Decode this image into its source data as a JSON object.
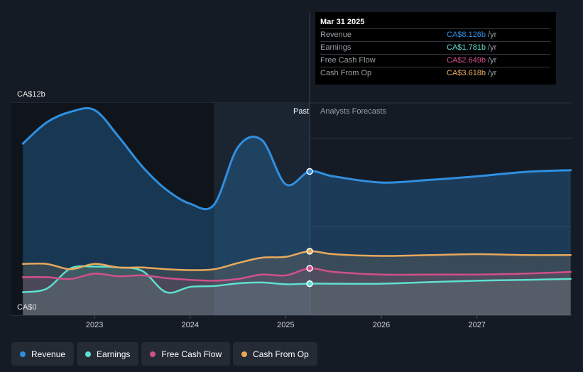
{
  "chart_data": {
    "type": "area",
    "y_axis": {
      "top_label": "CA$12b",
      "bottom_label": "CA$0",
      "ylim": [
        0,
        12
      ]
    },
    "x_ticks": [
      "2023",
      "2024",
      "2025",
      "2026",
      "2027"
    ],
    "regions": {
      "past_label": "Past",
      "forecast_label": "Analysts Forecasts"
    },
    "divider_x": 2025.25,
    "series": [
      {
        "name": "Revenue",
        "color": "#2f8fe0",
        "points": [
          [
            2022.25,
            9.7
          ],
          [
            2022.5,
            10.9
          ],
          [
            2022.75,
            11.5
          ],
          [
            2023.0,
            11.6
          ],
          [
            2023.25,
            10.1
          ],
          [
            2023.5,
            8.4
          ],
          [
            2023.75,
            7.1
          ],
          [
            2024.0,
            6.3
          ],
          [
            2024.25,
            6.25
          ],
          [
            2024.5,
            9.5
          ],
          [
            2024.75,
            9.9
          ],
          [
            2025.0,
            7.4
          ],
          [
            2025.25,
            8.126
          ],
          [
            2025.5,
            7.85
          ],
          [
            2026.0,
            7.5
          ],
          [
            2026.5,
            7.65
          ],
          [
            2027.0,
            7.85
          ],
          [
            2027.5,
            8.1
          ],
          [
            2027.98,
            8.2
          ]
        ]
      },
      {
        "name": "Earnings",
        "color": "#5ee0cf",
        "points": [
          [
            2022.25,
            1.3
          ],
          [
            2022.5,
            1.5
          ],
          [
            2022.75,
            2.65
          ],
          [
            2023.0,
            2.75
          ],
          [
            2023.25,
            2.7
          ],
          [
            2023.5,
            2.5
          ],
          [
            2023.75,
            1.3
          ],
          [
            2024.0,
            1.6
          ],
          [
            2024.25,
            1.65
          ],
          [
            2024.5,
            1.8
          ],
          [
            2024.75,
            1.85
          ],
          [
            2025.0,
            1.75
          ],
          [
            2025.25,
            1.781
          ],
          [
            2025.5,
            1.78
          ],
          [
            2026.0,
            1.78
          ],
          [
            2026.5,
            1.87
          ],
          [
            2027.0,
            1.95
          ],
          [
            2027.5,
            2.0
          ],
          [
            2027.98,
            2.05
          ]
        ]
      },
      {
        "name": "Free Cash Flow",
        "color": "#d1508a",
        "points": [
          [
            2022.25,
            2.15
          ],
          [
            2022.5,
            2.15
          ],
          [
            2022.75,
            2.05
          ],
          [
            2023.0,
            2.35
          ],
          [
            2023.25,
            2.2
          ],
          [
            2023.5,
            2.25
          ],
          [
            2023.75,
            2.1
          ],
          [
            2024.0,
            2.0
          ],
          [
            2024.25,
            1.95
          ],
          [
            2024.5,
            2.05
          ],
          [
            2024.75,
            2.3
          ],
          [
            2025.0,
            2.25
          ],
          [
            2025.25,
            2.649
          ],
          [
            2025.5,
            2.45
          ],
          [
            2026.0,
            2.3
          ],
          [
            2026.5,
            2.3
          ],
          [
            2027.0,
            2.3
          ],
          [
            2027.5,
            2.35
          ],
          [
            2027.98,
            2.45
          ]
        ]
      },
      {
        "name": "Cash From Op",
        "color": "#e8a95c",
        "points": [
          [
            2022.25,
            2.9
          ],
          [
            2022.5,
            2.9
          ],
          [
            2022.75,
            2.6
          ],
          [
            2023.0,
            2.9
          ],
          [
            2023.25,
            2.7
          ],
          [
            2023.5,
            2.7
          ],
          [
            2023.75,
            2.6
          ],
          [
            2024.0,
            2.55
          ],
          [
            2024.25,
            2.6
          ],
          [
            2024.5,
            2.95
          ],
          [
            2024.75,
            3.25
          ],
          [
            2025.0,
            3.3
          ],
          [
            2025.25,
            3.618
          ],
          [
            2025.5,
            3.45
          ],
          [
            2026.0,
            3.35
          ],
          [
            2026.5,
            3.4
          ],
          [
            2027.0,
            3.45
          ],
          [
            2027.5,
            3.4
          ],
          [
            2027.98,
            3.4
          ]
        ]
      }
    ],
    "tooltip": {
      "date": "Mar 31 2025",
      "rows": [
        {
          "name": "Revenue",
          "value": "CA$8.126b",
          "unit": "/yr",
          "color": "#2f8fe0"
        },
        {
          "name": "Earnings",
          "value": "CA$1.781b",
          "unit": "/yr",
          "color": "#5ee0cf"
        },
        {
          "name": "Free Cash Flow",
          "value": "CA$2.649b",
          "unit": "/yr",
          "color": "#d1508a"
        },
        {
          "name": "Cash From Op",
          "value": "CA$3.618b",
          "unit": "/yr",
          "color": "#e8a95c"
        }
      ]
    },
    "grid": true,
    "legend_position": "bottom-left"
  },
  "legend": [
    {
      "label": "Revenue",
      "color": "#2f8fe0"
    },
    {
      "label": "Earnings",
      "color": "#5ee0cf"
    },
    {
      "label": "Free Cash Flow",
      "color": "#d1508a"
    },
    {
      "label": "Cash From Op",
      "color": "#e8a95c"
    }
  ]
}
